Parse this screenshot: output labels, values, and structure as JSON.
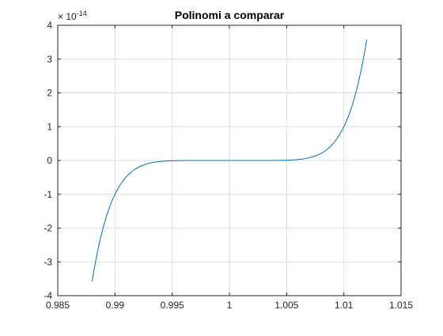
{
  "chart_data": {
    "type": "line",
    "title": "Polinomi a comparar",
    "xlabel": "",
    "ylabel": "",
    "xlim": [
      0.985,
      1.015
    ],
    "ylim": [
      -4e-14,
      4e-14
    ],
    "grid": true,
    "x_ticks": [
      0.985,
      0.99,
      0.995,
      1,
      1.005,
      1.01,
      1.015
    ],
    "x_tick_labels": [
      "0.985",
      "0.99",
      "0.995",
      "1",
      "1.005",
      "1.01",
      "1.015"
    ],
    "y_ticks": [
      -4,
      -3,
      -2,
      -1,
      0,
      1,
      2,
      3,
      4
    ],
    "y_tick_labels": [
      "-4",
      "-3",
      "-2",
      "-1",
      "0",
      "1",
      "2",
      "3",
      "4"
    ],
    "y_exponent_label": "× 10",
    "y_exponent_power": "-14",
    "series": [
      {
        "color": "#0072BD",
        "x_range": [
          0.988,
          1.012
        ],
        "x": [
          0.988,
          0.989,
          0.99,
          0.991,
          0.992,
          0.993,
          0.994,
          0.995,
          0.996,
          0.997,
          0.998,
          0.999,
          1.0,
          1.001,
          1.002,
          1.003,
          1.004,
          1.005,
          1.006,
          1.007,
          1.008,
          1.009,
          1.01,
          1.011,
          1.012
        ],
        "y": [
          -3.58e-14,
          -1.7e-14,
          -6.9e-15,
          -2.3e-15,
          -6.6e-16,
          -1.5e-16,
          -2.3e-17,
          -2.5e-18,
          0,
          0,
          0,
          0,
          0,
          0,
          0,
          0,
          0,
          2.5e-18,
          2.3e-17,
          1.5e-16,
          6.6e-16,
          2.3e-15,
          6.9e-15,
          1.7e-14,
          3.58e-14
        ]
      }
    ]
  },
  "colors": {
    "axis": "#262626",
    "grid": "#dfdfdf",
    "line": "#0072BD"
  }
}
